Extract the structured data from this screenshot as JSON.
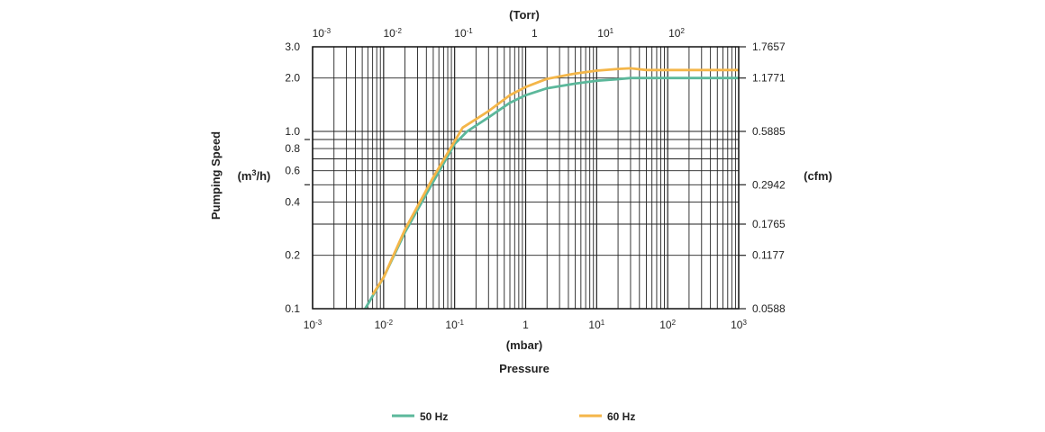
{
  "chart_data": {
    "type": "line",
    "title": "",
    "ylabel": "Pumping Speed",
    "ylabel_unit": "(m3/h)",
    "ylabel_unit_base": "(m",
    "ylabel_unit_sup": "3",
    "ylabel_unit_rest": "/h)",
    "y2label": "(cfm)",
    "xlabel": "Pressure",
    "x_unit_bottom": "(mbar)",
    "x_unit_top": "(Torr)",
    "x_scale": "log",
    "y_scale": "log",
    "xlim": [
      0.001,
      1000
    ],
    "ylim": [
      0.1,
      3.0
    ],
    "grid": true,
    "legend_position": "bottom",
    "x_ticks_bottom": [
      {
        "value": 0.001,
        "base": "10",
        "exp": "-3"
      },
      {
        "value": 0.01,
        "base": "10",
        "exp": "-2"
      },
      {
        "value": 0.1,
        "base": "10",
        "exp": "-1"
      },
      {
        "value": 1,
        "base": "1",
        "exp": ""
      },
      {
        "value": 10,
        "base": "10",
        "exp": "1"
      },
      {
        "value": 100,
        "base": "10",
        "exp": "2"
      },
      {
        "value": 1000,
        "base": "10",
        "exp": "3"
      }
    ],
    "x_ticks_top": [
      {
        "torr": 0.001,
        "base": "10",
        "exp": "-3"
      },
      {
        "torr": 0.01,
        "base": "10",
        "exp": "-2"
      },
      {
        "torr": 0.1,
        "base": "10",
        "exp": "-1"
      },
      {
        "torr": 1,
        "base": "1",
        "exp": ""
      },
      {
        "torr": 10,
        "base": "10",
        "exp": "1"
      },
      {
        "torr": 100,
        "base": "10",
        "exp": "2"
      }
    ],
    "torr_to_mbar": 1.33322,
    "y_ticks_left": [
      {
        "value": 3.0,
        "label": "3.0"
      },
      {
        "value": 2.0,
        "label": "2.0"
      },
      {
        "value": 1.0,
        "label": "1.0"
      },
      {
        "value": 0.8,
        "label": "0.8"
      },
      {
        "value": 0.6,
        "label": "0.6"
      },
      {
        "value": 0.4,
        "label": "0.4"
      },
      {
        "value": 0.2,
        "label": "0.2"
      },
      {
        "value": 0.1,
        "label": "0.1"
      }
    ],
    "y_ticks_right": [
      {
        "value": 3.0,
        "label": "1.7657"
      },
      {
        "value": 2.0,
        "label": "1.1771"
      },
      {
        "value": 1.0,
        "label": "0.5885"
      },
      {
        "value": 0.5,
        "label": "0.2942"
      },
      {
        "value": 0.3,
        "label": "0.1765"
      },
      {
        "value": 0.2,
        "label": "0.1177"
      },
      {
        "value": 0.1,
        "label": "0.0588"
      }
    ],
    "y_gridlines": [
      0.1,
      0.2,
      0.3,
      0.4,
      0.5,
      0.6,
      0.7,
      0.8,
      0.9,
      1.0,
      2.0,
      3.0
    ],
    "series": [
      {
        "name": "50 Hz",
        "color": "#5cb89b",
        "x": [
          0.0055,
          0.01,
          0.02,
          0.05,
          0.1,
          0.15,
          0.3,
          0.6,
          1.0,
          2.0,
          5.0,
          10,
          20,
          30,
          100,
          1000
        ],
        "y": [
          0.1,
          0.15,
          0.27,
          0.52,
          0.85,
          1.0,
          1.2,
          1.45,
          1.6,
          1.75,
          1.86,
          1.93,
          1.97,
          2.0,
          2.0,
          2.0
        ]
      },
      {
        "name": "60 Hz",
        "color": "#f4b649",
        "x": [
          0.007,
          0.01,
          0.02,
          0.05,
          0.1,
          0.13,
          0.3,
          0.6,
          1.0,
          2.0,
          5.0,
          10,
          20,
          30,
          50,
          1000
        ],
        "y": [
          0.12,
          0.15,
          0.28,
          0.55,
          0.88,
          1.05,
          1.3,
          1.6,
          1.78,
          1.98,
          2.12,
          2.2,
          2.25,
          2.27,
          2.22,
          2.22
        ]
      }
    ]
  }
}
